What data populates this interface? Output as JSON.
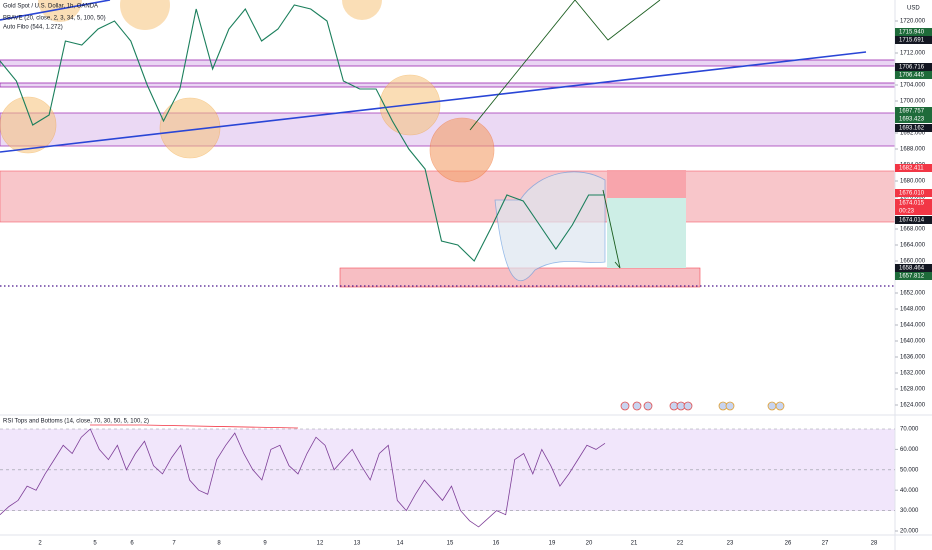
{
  "header": {
    "symbol": "Gold Spot / U.S. Dollar, 1h, OANDA",
    "indicators": [
      "BBAVE (20, close, 2, 3, 34, 5, 100, 50)",
      "Auto Fibo (544, 1.272)"
    ]
  },
  "price_axis": {
    "currency": "USD",
    "ylim": [
      1622.25,
      1725.25
    ],
    "ticks": [
      {
        "value": 1720,
        "label": "1720.000"
      },
      {
        "value": 1716,
        "label": "1716.000"
      },
      {
        "value": 1712,
        "label": "1712.000"
      },
      {
        "value": 1708,
        "label": "1708.000"
      },
      {
        "value": 1704,
        "label": "1704.000"
      },
      {
        "value": 1700,
        "label": "1700.000"
      },
      {
        "value": 1696,
        "label": "1696.000"
      },
      {
        "value": 1692,
        "label": "1692.000"
      },
      {
        "value": 1688,
        "label": "1688.000"
      },
      {
        "value": 1684,
        "label": "1684.000"
      },
      {
        "value": 1680,
        "label": "1680.000"
      },
      {
        "value": 1676,
        "label": "1676.000"
      },
      {
        "value": 1672,
        "label": "1672.000"
      },
      {
        "value": 1668,
        "label": "1668.000"
      },
      {
        "value": 1664,
        "label": "1664.000"
      },
      {
        "value": 1660,
        "label": "1660.000"
      },
      {
        "value": 1656,
        "label": "1656.000"
      },
      {
        "value": 1652,
        "label": "1652.000"
      },
      {
        "value": 1648,
        "label": "1648.000"
      },
      {
        "value": 1644,
        "label": "1644.000"
      },
      {
        "value": 1640,
        "label": "1640.000"
      },
      {
        "value": 1636,
        "label": "1636.000"
      },
      {
        "value": 1632,
        "label": "1632.000"
      },
      {
        "value": 1628,
        "label": "1628.000"
      },
      {
        "value": 1624,
        "label": "1624.000"
      }
    ]
  },
  "price": {
    "close": [
      1710,
      1705,
      1694,
      1696.5,
      1715,
      1714,
      1718,
      1720,
      1715,
      1704,
      1695,
      1703,
      1723,
      1708,
      1718,
      1723,
      1715,
      1718,
      1724,
      1723,
      1720,
      1705,
      1703,
      1703,
      1695,
      1688,
      1683,
      1665,
      1664,
      1660,
      1668,
      1676.5,
      1675,
      1669,
      1663,
      1669,
      1676.5,
      1676.5
    ]
  },
  "price_tags": [
    {
      "label": "1715.940",
      "color": "#1e6b3a"
    },
    {
      "label": "1715.691",
      "color": "#131722"
    },
    {
      "label": "1706.716",
      "color": "#131722"
    },
    {
      "label": "1706.445",
      "color": "#1e6b3a"
    },
    {
      "label": "1697.757",
      "color": "#1e6b3a"
    },
    {
      "label": "1693.423",
      "color": "#1e6b3a"
    },
    {
      "label": "1693.162",
      "color": "#131722"
    },
    {
      "label": "1682.411",
      "color": "#f23645"
    },
    {
      "label": "1676.010",
      "color": "#f23645"
    },
    {
      "label": "1674.015",
      "color": "#f23645"
    },
    {
      "label": "00:23",
      "color": "#f23645"
    },
    {
      "label": "1674.014",
      "color": "#131722"
    },
    {
      "label": "1658.464",
      "color": "#131722"
    },
    {
      "label": "1657.812",
      "color": "#1e6b3a"
    }
  ],
  "rsi": {
    "title": "RSI Tops and Bottoms (14, close, 70, 30, 50, 5, 100, 2)",
    "ylim": [
      16.5,
      77
    ],
    "ticks": [
      {
        "value": 70,
        "label": "70.000"
      },
      {
        "value": 60,
        "label": "60.000"
      },
      {
        "value": 50,
        "label": "50.000"
      },
      {
        "value": 40,
        "label": "40.000"
      },
      {
        "value": 30,
        "label": "30.000"
      },
      {
        "value": 20,
        "label": "20.000"
      }
    ],
    "values": [
      28,
      32,
      35,
      42,
      40,
      48,
      55,
      62,
      58,
      66,
      70,
      60,
      55,
      62,
      50,
      58,
      64,
      52,
      48,
      56,
      62,
      45,
      40,
      38,
      55,
      62,
      68,
      58,
      50,
      45,
      60,
      62,
      52,
      48,
      58,
      66,
      62,
      50,
      55,
      60,
      52,
      45,
      58,
      62,
      35,
      30,
      38,
      45,
      40,
      35,
      42,
      30,
      25,
      22,
      26,
      30,
      28,
      55,
      58,
      48,
      60,
      52,
      42,
      48,
      55,
      62,
      60,
      63
    ]
  },
  "dates": [
    "2",
    "5",
    "6",
    "7",
    "8",
    "9",
    "12",
    "13",
    "14",
    "15",
    "16",
    "19",
    "20",
    "21",
    "22",
    "23",
    "26",
    "27",
    "28"
  ]
}
